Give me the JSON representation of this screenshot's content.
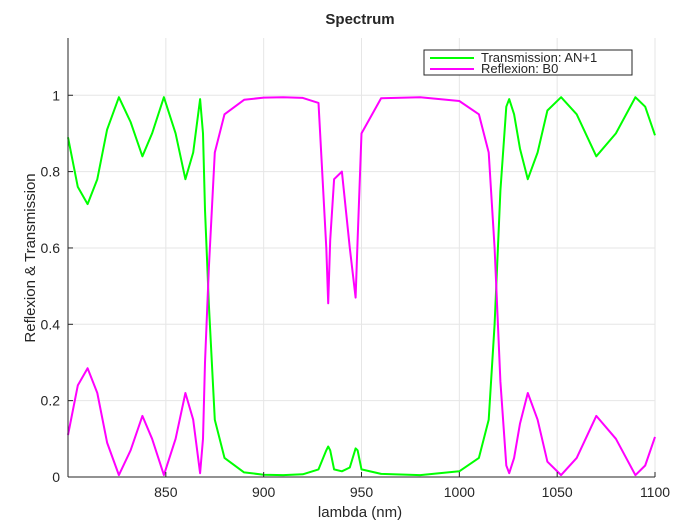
{
  "chart_data": {
    "type": "line",
    "title": "Spectrum",
    "xlabel": "lambda (nm)",
    "ylabel": "Reflexion & Transmission",
    "xlim": [
      800,
      1100
    ],
    "ylim": [
      0,
      1.15
    ],
    "xticks": [
      850,
      900,
      950,
      1000,
      1050,
      1100
    ],
    "yticks": [
      0,
      0.2,
      0.4,
      0.6,
      0.8,
      1
    ],
    "xtick_labels": [
      "850",
      "900",
      "950",
      "1000",
      "1050",
      "1100"
    ],
    "ytick_labels": [
      "0",
      "0.2",
      "0.4",
      "0.6",
      "0.8",
      "1"
    ],
    "grid": true,
    "legend_position": "top-right",
    "series": [
      {
        "name": "Transmission: AN+1",
        "color": "#00ff00",
        "x": [
          800,
          805,
          810,
          815,
          820,
          826,
          832,
          838,
          843,
          849,
          855,
          860,
          864,
          867.5,
          869,
          870,
          872,
          875,
          880,
          890,
          900,
          910,
          920,
          928,
          932,
          933,
          934,
          936,
          940,
          944,
          947,
          948,
          950,
          960,
          980,
          1000,
          1010,
          1015,
          1018,
          1021,
          1024,
          1025.5,
          1028,
          1031,
          1035,
          1040,
          1045,
          1052,
          1060,
          1070,
          1080,
          1090,
          1095,
          1100
        ],
        "y": [
          0.89,
          0.76,
          0.715,
          0.78,
          0.91,
          0.995,
          0.93,
          0.84,
          0.9,
          0.995,
          0.9,
          0.78,
          0.85,
          0.99,
          0.9,
          0.7,
          0.45,
          0.15,
          0.05,
          0.012,
          0.006,
          0.005,
          0.007,
          0.02,
          0.07,
          0.08,
          0.07,
          0.02,
          0.015,
          0.025,
          0.075,
          0.07,
          0.02,
          0.008,
          0.005,
          0.015,
          0.05,
          0.15,
          0.4,
          0.75,
          0.97,
          0.99,
          0.95,
          0.86,
          0.78,
          0.85,
          0.96,
          0.995,
          0.95,
          0.84,
          0.9,
          0.995,
          0.97,
          0.895
        ]
      },
      {
        "name": "Reflexion: B0",
        "color": "#ff00ff",
        "x": [
          800,
          805,
          810,
          815,
          820,
          826,
          832,
          838,
          843,
          849,
          855,
          860,
          864,
          867.5,
          869,
          870,
          872,
          875,
          880,
          890,
          900,
          910,
          920,
          928,
          932,
          933,
          934,
          936,
          940,
          944,
          947,
          948,
          950,
          960,
          980,
          1000,
          1010,
          1015,
          1018,
          1021,
          1024,
          1025.5,
          1028,
          1031,
          1035,
          1040,
          1045,
          1052,
          1060,
          1070,
          1080,
          1090,
          1095,
          1100
        ],
        "y": [
          0.11,
          0.24,
          0.285,
          0.22,
          0.09,
          0.005,
          0.07,
          0.16,
          0.1,
          0.005,
          0.1,
          0.22,
          0.15,
          0.01,
          0.1,
          0.3,
          0.55,
          0.85,
          0.95,
          0.988,
          0.994,
          0.995,
          0.993,
          0.98,
          0.6,
          0.455,
          0.62,
          0.78,
          0.8,
          0.6,
          0.47,
          0.62,
          0.9,
          0.992,
          0.995,
          0.985,
          0.95,
          0.85,
          0.6,
          0.25,
          0.03,
          0.01,
          0.05,
          0.14,
          0.22,
          0.15,
          0.04,
          0.005,
          0.05,
          0.16,
          0.1,
          0.005,
          0.03,
          0.105
        ]
      }
    ]
  }
}
